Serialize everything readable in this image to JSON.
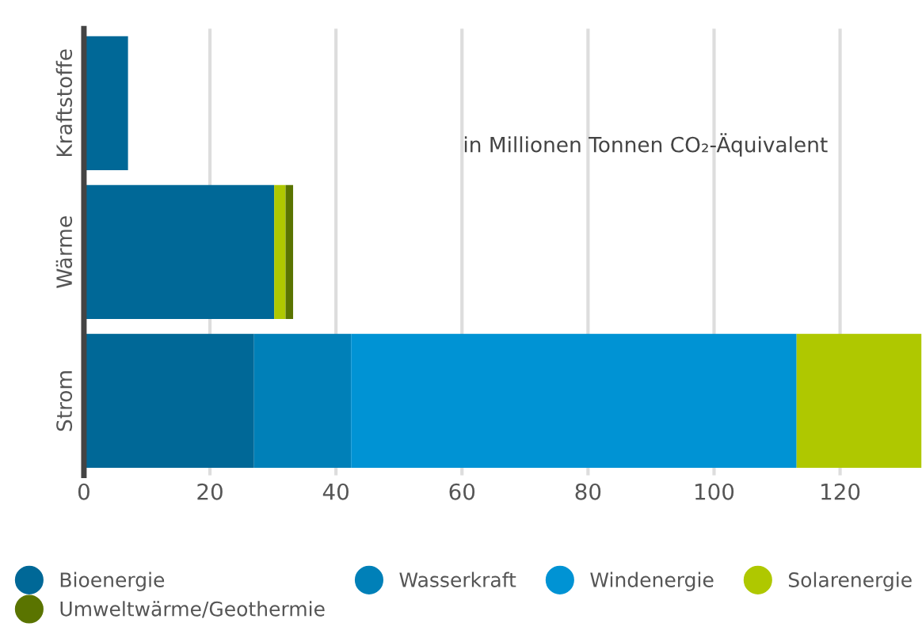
{
  "chart_data": {
    "type": "bar",
    "orientation": "horizontal",
    "stacked": true,
    "categories": [
      "Kraftstoffe",
      "Wärme",
      "Strom"
    ],
    "series": [
      {
        "name": "Bioenergie",
        "color": "#006897",
        "values": [
          7.0,
          30.2,
          27.0
        ]
      },
      {
        "name": "Wasserkraft",
        "color": "#0080b8",
        "values": [
          null,
          null,
          15.4
        ]
      },
      {
        "name": "Windenergie",
        "color": "#0093d4",
        "values": [
          null,
          null,
          70.7
        ]
      },
      {
        "name": "Solarenergie",
        "color": "#afc800",
        "values": [
          null,
          1.8,
          19.8
        ]
      },
      {
        "name": "Umweltwärme/Geothermie",
        "color": "#5a7400",
        "values": [
          null,
          1.2,
          null
        ]
      }
    ],
    "xlim": [
      0,
      133
    ],
    "xticks": [
      0,
      20,
      40,
      60,
      80,
      100,
      120
    ],
    "grid": "x",
    "legend": "bottom",
    "annotations": [
      "in Millionen Tonnen CO₂-Äquivalent"
    ]
  }
}
